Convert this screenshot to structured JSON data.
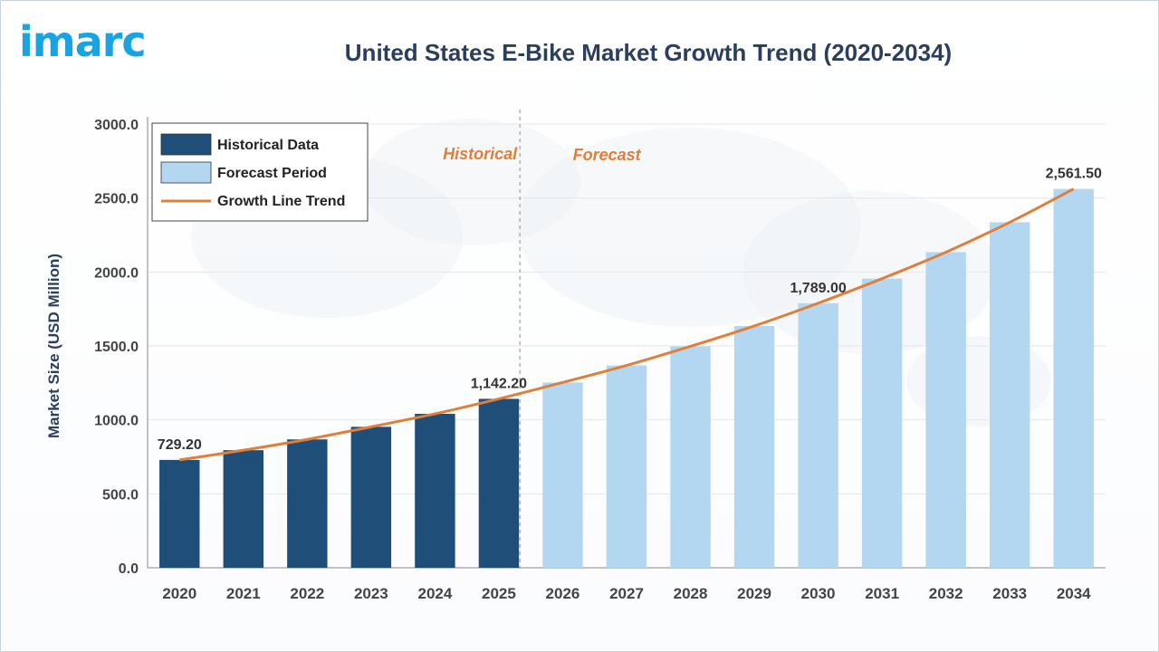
{
  "logo": {
    "text": "imarc"
  },
  "colors": {
    "historical": "#1f4e79",
    "forecast": "#b3d7f0",
    "trend": "#e07f3a",
    "phase_label": "#e07f3a",
    "axis_text": "#444444",
    "ylabel": "#2b3e5c"
  },
  "chart_data": {
    "type": "bar",
    "title": "United States E-Bike Market Growth Trend (2020-2034)",
    "xlabel": "",
    "ylabel": "Market Size (USD Million)",
    "ylim": [
      0,
      3000
    ],
    "yticks": [
      "0.0",
      "500.0",
      "1000.0",
      "1500.0",
      "2000.0",
      "2500.0",
      "3000.0"
    ],
    "yticks_values": [
      0,
      500,
      1000,
      1500,
      2000,
      2500,
      3000
    ],
    "categories": [
      "2020",
      "2021",
      "2022",
      "2023",
      "2024",
      "2025",
      "2026",
      "2027",
      "2028",
      "2029",
      "2030",
      "2031",
      "2032",
      "2033",
      "2034"
    ],
    "values": [
      729.2,
      795,
      868,
      953,
      1041,
      1142.2,
      1253,
      1368,
      1497,
      1635,
      1789,
      1955,
      2134,
      2336,
      2561.5
    ],
    "period": [
      "historical",
      "historical",
      "historical",
      "historical",
      "historical",
      "historical",
      "forecast",
      "forecast",
      "forecast",
      "forecast",
      "forecast",
      "forecast",
      "forecast",
      "forecast",
      "forecast"
    ],
    "data_labels": [
      {
        "index": 0,
        "text": "729.20"
      },
      {
        "index": 5,
        "text": "1,142.20"
      },
      {
        "index": 10,
        "text": "1,789.00"
      },
      {
        "index": 14,
        "text": "2,561.50"
      }
    ],
    "phase_labels": {
      "historical": "Historical",
      "forecast": "Forecast"
    },
    "legend": {
      "placement": "top-left",
      "entries": [
        "Historical Data",
        "Forecast Period",
        "Growth Line Trend"
      ]
    },
    "grid": true
  }
}
